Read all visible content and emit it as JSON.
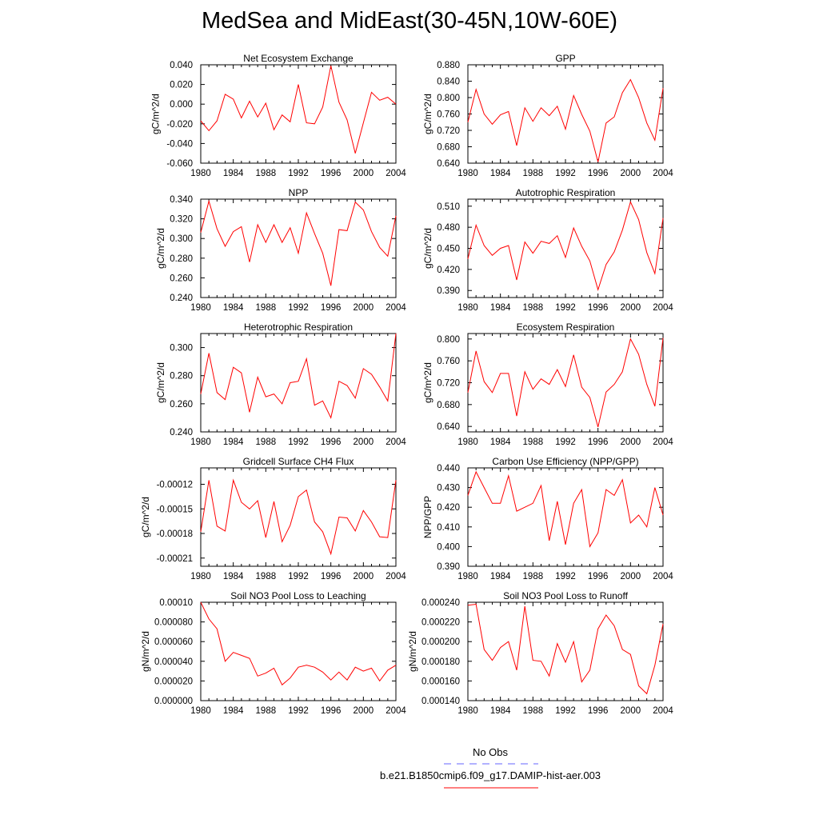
{
  "title": "MedSea and MidEast(30-45N,10W-60E)",
  "colors": {
    "model_line": "#ff0000",
    "obs_line": "#6666ff",
    "axis": "#000000"
  },
  "legend": {
    "entries": [
      {
        "label": "No Obs",
        "style": "dashed",
        "color": "#6666ff"
      },
      {
        "label": "b.e21.B1850cmip6.f09_g17.DAMIP-hist-aer.003",
        "style": "solid",
        "color": "#ff0000"
      }
    ]
  },
  "chart_data": [
    {
      "type": "line",
      "title": "Net Ecosystem Exchange",
      "ylabel": "gC/m^2/d",
      "xlim": [
        1980,
        2004
      ],
      "ylim": [
        -0.06,
        0.04
      ],
      "xticks": [
        "1980",
        "1984",
        "1988",
        "1992",
        "1996",
        "2000",
        "2004"
      ],
      "yticks": [
        "-0.060",
        "-0.040",
        "-0.020",
        "0.000",
        "0.020",
        "0.040"
      ],
      "x": [
        1980,
        1981,
        1982,
        1983,
        1984,
        1985,
        1986,
        1987,
        1988,
        1989,
        1990,
        1991,
        1992,
        1993,
        1994,
        1995,
        1996,
        1997,
        1998,
        1999,
        2000,
        2001,
        2002,
        2003,
        2004
      ],
      "series": [
        {
          "name": "b.e21.B1850cmip6.f09_g17.DAMIP-hist-aer.003",
          "values": [
            -0.017,
            -0.027,
            -0.017,
            0.01,
            0.005,
            -0.014,
            0.003,
            -0.013,
            0.001,
            -0.026,
            -0.011,
            -0.018,
            0.02,
            -0.019,
            -0.02,
            -0.003,
            0.039,
            0.002,
            -0.016,
            -0.05,
            -0.019,
            0.012,
            0.004,
            0.007,
            0.0
          ]
        }
      ]
    },
    {
      "type": "line",
      "title": "GPP",
      "ylabel": "gC/m^2/d",
      "xlim": [
        1980,
        2004
      ],
      "ylim": [
        0.64,
        0.88
      ],
      "xticks": [
        "1980",
        "1984",
        "1988",
        "1992",
        "1996",
        "2000",
        "2004"
      ],
      "yticks": [
        "0.640",
        "0.680",
        "0.720",
        "0.760",
        "0.800",
        "0.840",
        "0.880"
      ],
      "x": [
        1980,
        1981,
        1982,
        1983,
        1984,
        1985,
        1986,
        1987,
        1988,
        1989,
        1990,
        1991,
        1992,
        1993,
        1994,
        1995,
        1996,
        1997,
        1998,
        1999,
        2000,
        2001,
        2002,
        2003,
        2004
      ],
      "series": [
        {
          "name": "b.e21.B1850cmip6.f09_g17.DAMIP-hist-aer.003",
          "values": [
            0.74,
            0.82,
            0.76,
            0.735,
            0.758,
            0.766,
            0.683,
            0.775,
            0.742,
            0.775,
            0.756,
            0.779,
            0.723,
            0.805,
            0.759,
            0.718,
            0.643,
            0.738,
            0.753,
            0.812,
            0.844,
            0.8,
            0.738,
            0.696,
            0.823
          ]
        }
      ]
    },
    {
      "type": "line",
      "title": "NPP",
      "ylabel": "gC/m^2/d",
      "xlim": [
        1980,
        2004
      ],
      "ylim": [
        0.24,
        0.34
      ],
      "xticks": [
        "1980",
        "1984",
        "1988",
        "1992",
        "1996",
        "2000",
        "2004"
      ],
      "yticks": [
        "0.240",
        "0.260",
        "0.280",
        "0.300",
        "0.320",
        "0.340"
      ],
      "x": [
        1980,
        1981,
        1982,
        1983,
        1984,
        1985,
        1986,
        1987,
        1988,
        1989,
        1990,
        1991,
        1992,
        1993,
        1994,
        1995,
        1996,
        1997,
        1998,
        1999,
        2000,
        2001,
        2002,
        2003,
        2004
      ],
      "series": [
        {
          "name": "b.e21.B1850cmip6.f09_g17.DAMIP-hist-aer.003",
          "values": [
            0.306,
            0.338,
            0.31,
            0.292,
            0.307,
            0.312,
            0.276,
            0.314,
            0.296,
            0.314,
            0.296,
            0.311,
            0.285,
            0.326,
            0.305,
            0.285,
            0.252,
            0.309,
            0.308,
            0.337,
            0.329,
            0.307,
            0.291,
            0.282,
            0.323
          ]
        }
      ]
    },
    {
      "type": "line",
      "title": "Autotrophic Respiration",
      "ylabel": "gC/m^2/d",
      "xlim": [
        1980,
        2004
      ],
      "ylim": [
        0.38,
        0.52
      ],
      "xticks": [
        "1980",
        "1984",
        "1988",
        "1992",
        "1996",
        "2000",
        "2004"
      ],
      "yticks": [
        "0.390",
        "0.420",
        "0.450",
        "0.480",
        "0.510"
      ],
      "x": [
        1980,
        1981,
        1982,
        1983,
        1984,
        1985,
        1986,
        1987,
        1988,
        1989,
        1990,
        1991,
        1992,
        1993,
        1994,
        1995,
        1996,
        1997,
        1998,
        1999,
        2000,
        2001,
        2002,
        2003,
        2004
      ],
      "series": [
        {
          "name": "b.e21.B1850cmip6.f09_g17.DAMIP-hist-aer.003",
          "values": [
            0.435,
            0.483,
            0.454,
            0.44,
            0.45,
            0.454,
            0.405,
            0.459,
            0.443,
            0.46,
            0.457,
            0.468,
            0.437,
            0.479,
            0.453,
            0.432,
            0.391,
            0.427,
            0.445,
            0.476,
            0.516,
            0.491,
            0.444,
            0.414,
            0.493
          ]
        }
      ]
    },
    {
      "type": "line",
      "title": "Heterotrophic Respiration",
      "ylabel": "gC/m^2/d",
      "xlim": [
        1980,
        2004
      ],
      "ylim": [
        0.24,
        0.31
      ],
      "xticks": [
        "1980",
        "1984",
        "1988",
        "1992",
        "1996",
        "2000",
        "2004"
      ],
      "yticks": [
        "0.240",
        "0.260",
        "0.280",
        "0.300"
      ],
      "x": [
        1980,
        1981,
        1982,
        1983,
        1984,
        1985,
        1986,
        1987,
        1988,
        1989,
        1990,
        1991,
        1992,
        1993,
        1994,
        1995,
        1996,
        1997,
        1998,
        1999,
        2000,
        2001,
        2002,
        2003,
        2004
      ],
      "series": [
        {
          "name": "b.e21.B1850cmip6.f09_g17.DAMIP-hist-aer.003",
          "values": [
            0.267,
            0.296,
            0.268,
            0.263,
            0.286,
            0.282,
            0.254,
            0.279,
            0.265,
            0.267,
            0.26,
            0.275,
            0.276,
            0.292,
            0.259,
            0.262,
            0.25,
            0.276,
            0.273,
            0.264,
            0.285,
            0.281,
            0.272,
            0.262,
            0.31
          ]
        }
      ]
    },
    {
      "type": "line",
      "title": "Ecosystem Respiration",
      "ylabel": "gC/m^2/d",
      "xlim": [
        1980,
        2004
      ],
      "ylim": [
        0.63,
        0.81
      ],
      "xticks": [
        "1980",
        "1984",
        "1988",
        "1992",
        "1996",
        "2000",
        "2004"
      ],
      "yticks": [
        "0.640",
        "0.680",
        "0.720",
        "0.760",
        "0.800"
      ],
      "x": [
        1980,
        1981,
        1982,
        1983,
        1984,
        1985,
        1986,
        1987,
        1988,
        1989,
        1990,
        1991,
        1992,
        1993,
        1994,
        1995,
        1996,
        1997,
        1998,
        1999,
        2000,
        2001,
        2002,
        2003,
        2004
      ],
      "series": [
        {
          "name": "b.e21.B1850cmip6.f09_g17.DAMIP-hist-aer.003",
          "values": [
            0.702,
            0.778,
            0.722,
            0.702,
            0.737,
            0.737,
            0.659,
            0.74,
            0.708,
            0.727,
            0.717,
            0.744,
            0.713,
            0.771,
            0.712,
            0.693,
            0.639,
            0.703,
            0.717,
            0.74,
            0.8,
            0.772,
            0.717,
            0.677,
            0.802
          ]
        }
      ]
    },
    {
      "type": "line",
      "title": "Gridcell Surface CH4 Flux",
      "ylabel": "gC/m^2/d",
      "xlim": [
        1980,
        2004
      ],
      "ylim": [
        -0.00022,
        -0.0001
      ],
      "xticks": [
        "1980",
        "1984",
        "1988",
        "1992",
        "1996",
        "2000",
        "2004"
      ],
      "yticks": [
        "-0.00021",
        "-0.00018",
        "-0.00015",
        "-0.00012"
      ],
      "x": [
        1980,
        1981,
        1982,
        1983,
        1984,
        1985,
        1986,
        1987,
        1988,
        1989,
        1990,
        1991,
        1992,
        1993,
        1994,
        1995,
        1996,
        1997,
        1998,
        1999,
        2000,
        2001,
        2002,
        2003,
        2004
      ],
      "series": [
        {
          "name": "b.e21.B1850cmip6.f09_g17.DAMIP-hist-aer.003",
          "values": [
            -0.000178,
            -0.000115,
            -0.000171,
            -0.000177,
            -0.000115,
            -0.000142,
            -0.00015,
            -0.00014,
            -0.000185,
            -0.000141,
            -0.00019,
            -0.00017,
            -0.000135,
            -0.000127,
            -0.000166,
            -0.000178,
            -0.000205,
            -0.00016,
            -0.000161,
            -0.000177,
            -0.000152,
            -0.000166,
            -0.000184,
            -0.000185,
            -0.000115
          ]
        }
      ]
    },
    {
      "type": "line",
      "title": "Carbon Use Efficiency (NPP/GPP)",
      "ylabel": "NPP/GPP",
      "xlim": [
        1980,
        2004
      ],
      "ylim": [
        0.39,
        0.44
      ],
      "xticks": [
        "1980",
        "1984",
        "1988",
        "1992",
        "1996",
        "2000",
        "2004"
      ],
      "yticks": [
        "0.390",
        "0.400",
        "0.410",
        "0.420",
        "0.430",
        "0.440"
      ],
      "x": [
        1980,
        1981,
        1982,
        1983,
        1984,
        1985,
        1986,
        1987,
        1988,
        1989,
        1990,
        1991,
        1992,
        1993,
        1994,
        1995,
        1996,
        1997,
        1998,
        1999,
        2000,
        2001,
        2002,
        2003,
        2004
      ],
      "series": [
        {
          "name": "b.e21.B1850cmip6.f09_g17.DAMIP-hist-aer.003",
          "values": [
            0.426,
            0.438,
            0.43,
            0.422,
            0.422,
            0.436,
            0.418,
            0.42,
            0.422,
            0.431,
            0.403,
            0.423,
            0.401,
            0.422,
            0.429,
            0.4,
            0.407,
            0.429,
            0.426,
            0.434,
            0.412,
            0.416,
            0.41,
            0.43,
            0.416
          ]
        }
      ]
    },
    {
      "type": "line",
      "title": "Soil NO3 Pool Loss to Leaching",
      "ylabel": "gN/m^2/d",
      "xlim": [
        1980,
        2004
      ],
      "ylim": [
        0.0,
        0.0001
      ],
      "xticks": [
        "1980",
        "1984",
        "1988",
        "1992",
        "1996",
        "2000",
        "2004"
      ],
      "yticks": [
        "0.000000",
        "0.000020",
        "0.000040",
        "0.000060",
        "0.000080",
        "0.00010"
      ],
      "x": [
        1980,
        1981,
        1982,
        1983,
        1984,
        1985,
        1986,
        1987,
        1988,
        1989,
        1990,
        1991,
        1992,
        1993,
        1994,
        1995,
        1996,
        1997,
        1998,
        1999,
        2000,
        2001,
        2002,
        2003,
        2004
      ],
      "series": [
        {
          "name": "b.e21.B1850cmip6.f09_g17.DAMIP-hist-aer.003",
          "values": [
            0.0001,
            8.3e-05,
            7.3e-05,
            4e-05,
            4.9e-05,
            4.6e-05,
            4.3e-05,
            2.5e-05,
            2.8e-05,
            3.3e-05,
            1.6e-05,
            2.3e-05,
            3.4e-05,
            3.6e-05,
            3.4e-05,
            2.9e-05,
            2.1e-05,
            2.9e-05,
            2.1e-05,
            3.4e-05,
            3e-05,
            3.3e-05,
            2e-05,
            3.1e-05,
            3.6e-05
          ]
        }
      ]
    },
    {
      "type": "line",
      "title": "Soil NO3 Pool Loss to Runoff",
      "ylabel": "gN/m^2/d",
      "xlim": [
        1980,
        2004
      ],
      "ylim": [
        0.00014,
        0.00024
      ],
      "xticks": [
        "1980",
        "1984",
        "1988",
        "1992",
        "1996",
        "2000",
        "2004"
      ],
      "yticks": [
        "0.000140",
        "0.000160",
        "0.000180",
        "0.000200",
        "0.000220",
        "0.000240"
      ],
      "x": [
        1980,
        1981,
        1982,
        1983,
        1984,
        1985,
        1986,
        1987,
        1988,
        1989,
        1990,
        1991,
        1992,
        1993,
        1994,
        1995,
        1996,
        1997,
        1998,
        1999,
        2000,
        2001,
        2002,
        2003,
        2004
      ],
      "series": [
        {
          "name": "b.e21.B1850cmip6.f09_g17.DAMIP-hist-aer.003",
          "values": [
            0.000237,
            0.000238,
            0.000192,
            0.000181,
            0.000194,
            0.0002,
            0.000171,
            0.000236,
            0.000181,
            0.00018,
            0.000165,
            0.000198,
            0.000179,
            0.0002,
            0.000159,
            0.000171,
            0.000213,
            0.000227,
            0.000216,
            0.000192,
            0.000187,
            0.000155,
            0.000147,
            0.000176,
            0.000218
          ]
        }
      ]
    }
  ]
}
